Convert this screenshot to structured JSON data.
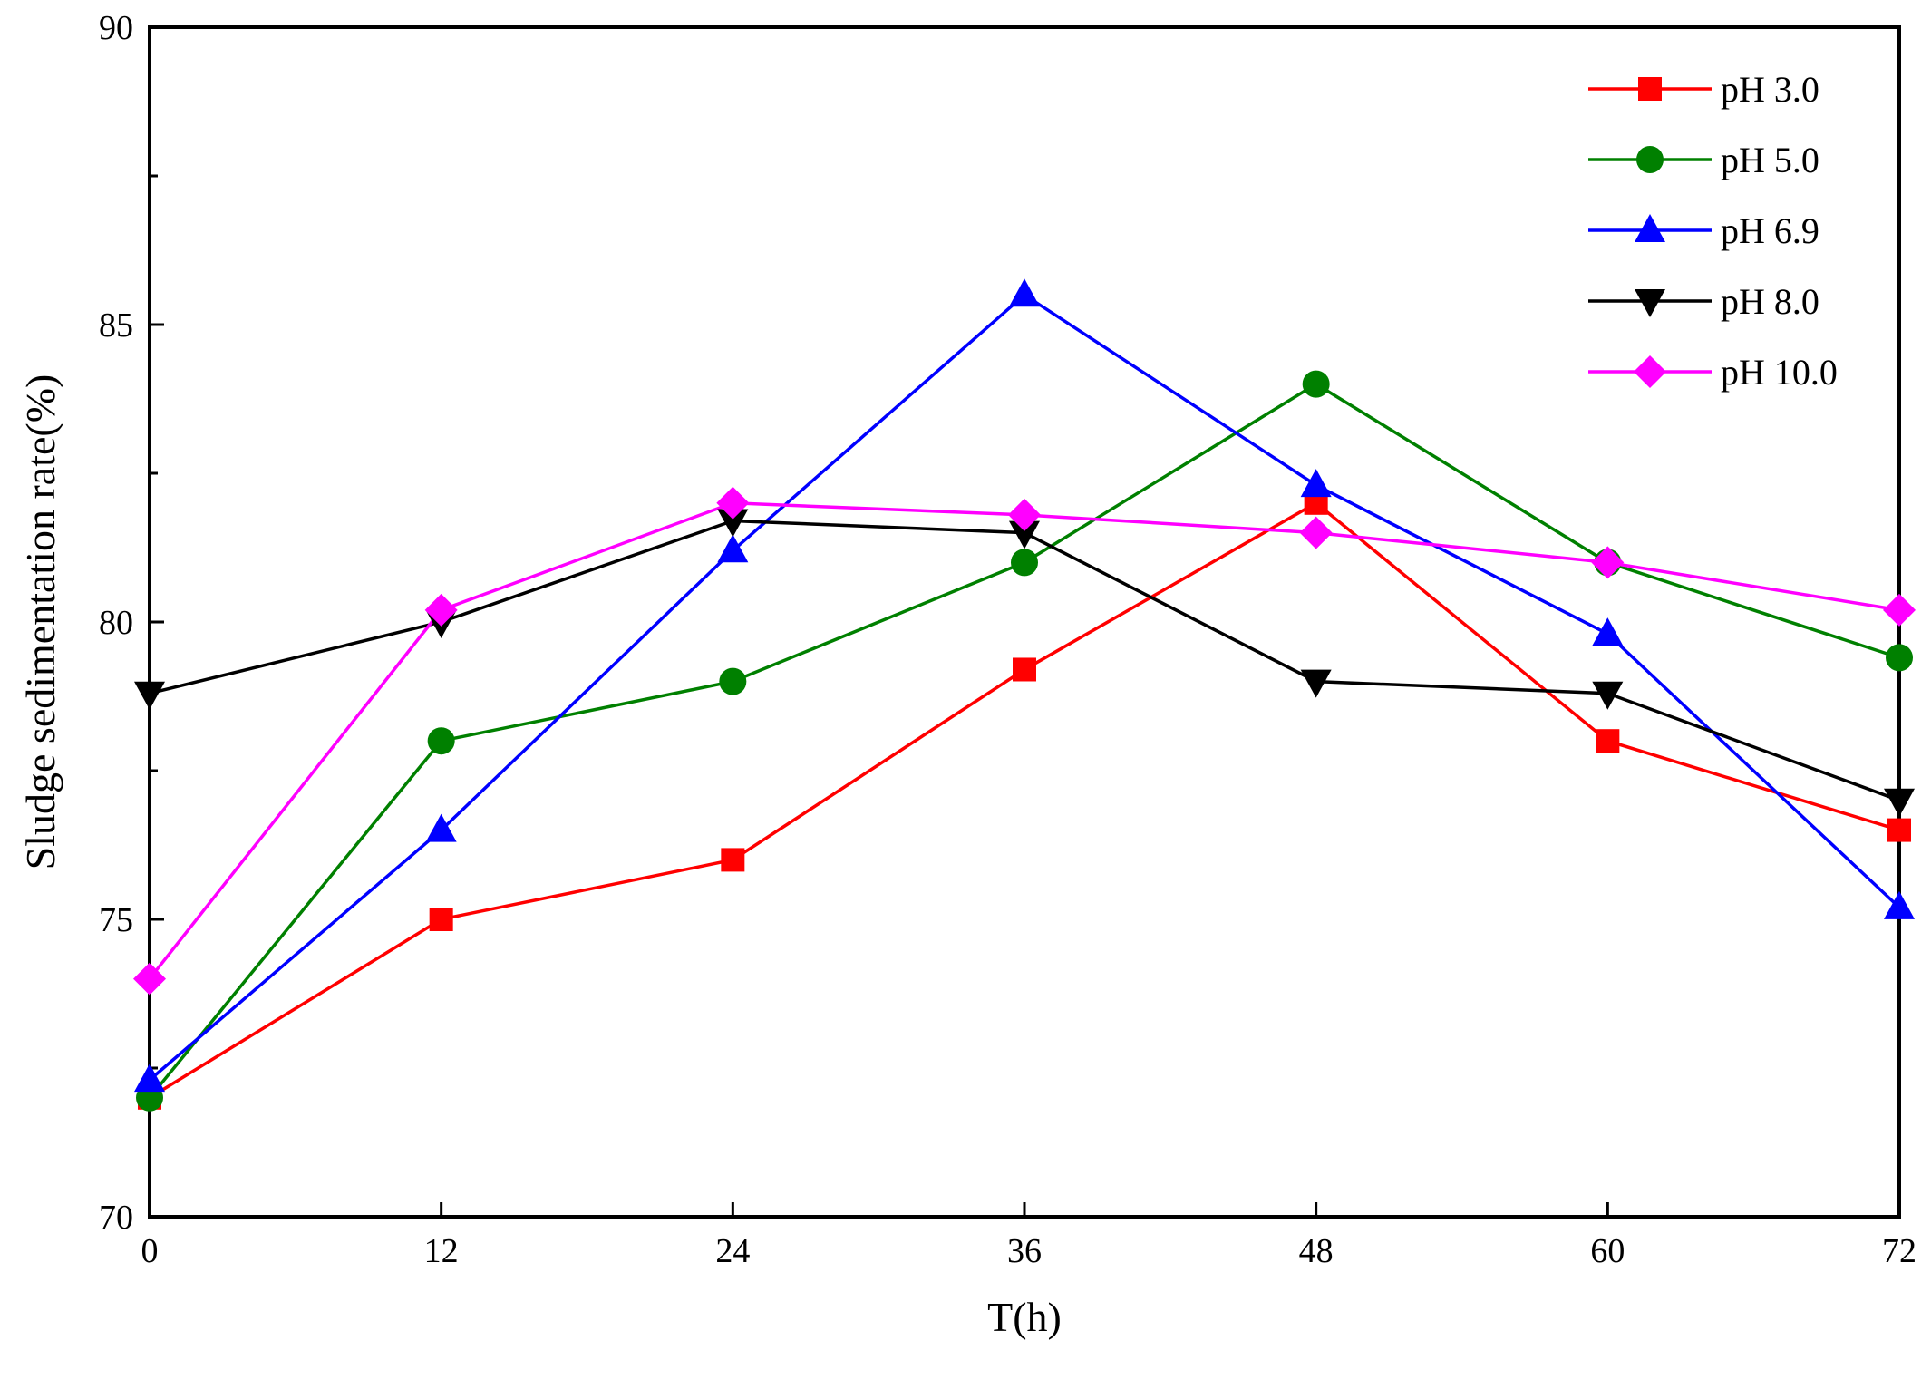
{
  "chart_data": {
    "type": "line",
    "title": "",
    "xlabel": "T(h)",
    "ylabel": "Sludge sedimentation rate(%)",
    "x": [
      0,
      12,
      24,
      36,
      48,
      60,
      72
    ],
    "xlim": [
      0,
      72
    ],
    "ylim": [
      70,
      90
    ],
    "xticks": [
      0,
      12,
      24,
      36,
      48,
      60,
      72
    ],
    "yticks": [
      70,
      75,
      80,
      85,
      90
    ],
    "grid": false,
    "legend_position": "top-right",
    "series": [
      {
        "name": "pH 3.0",
        "color": "#ff0000",
        "marker": "square",
        "values": [
          72.0,
          75.0,
          76.0,
          79.2,
          82.0,
          78.0,
          76.5
        ]
      },
      {
        "name": "pH 5.0",
        "color": "#008000",
        "marker": "circle",
        "values": [
          72.0,
          78.0,
          79.0,
          81.0,
          84.0,
          81.0,
          79.4
        ]
      },
      {
        "name": "pH 6.9",
        "color": "#0000ff",
        "marker": "triangle-up",
        "values": [
          72.3,
          76.5,
          81.2,
          85.5,
          82.3,
          79.8,
          75.2
        ]
      },
      {
        "name": "pH 8.0",
        "color": "#000000",
        "marker": "triangle-down",
        "values": [
          78.8,
          80.0,
          81.7,
          81.5,
          79.0,
          78.8,
          77.0
        ]
      },
      {
        "name": "pH 10.0",
        "color": "#ff00ff",
        "marker": "diamond",
        "values": [
          74.0,
          80.2,
          82.0,
          81.8,
          81.5,
          81.0,
          80.2
        ]
      }
    ]
  }
}
